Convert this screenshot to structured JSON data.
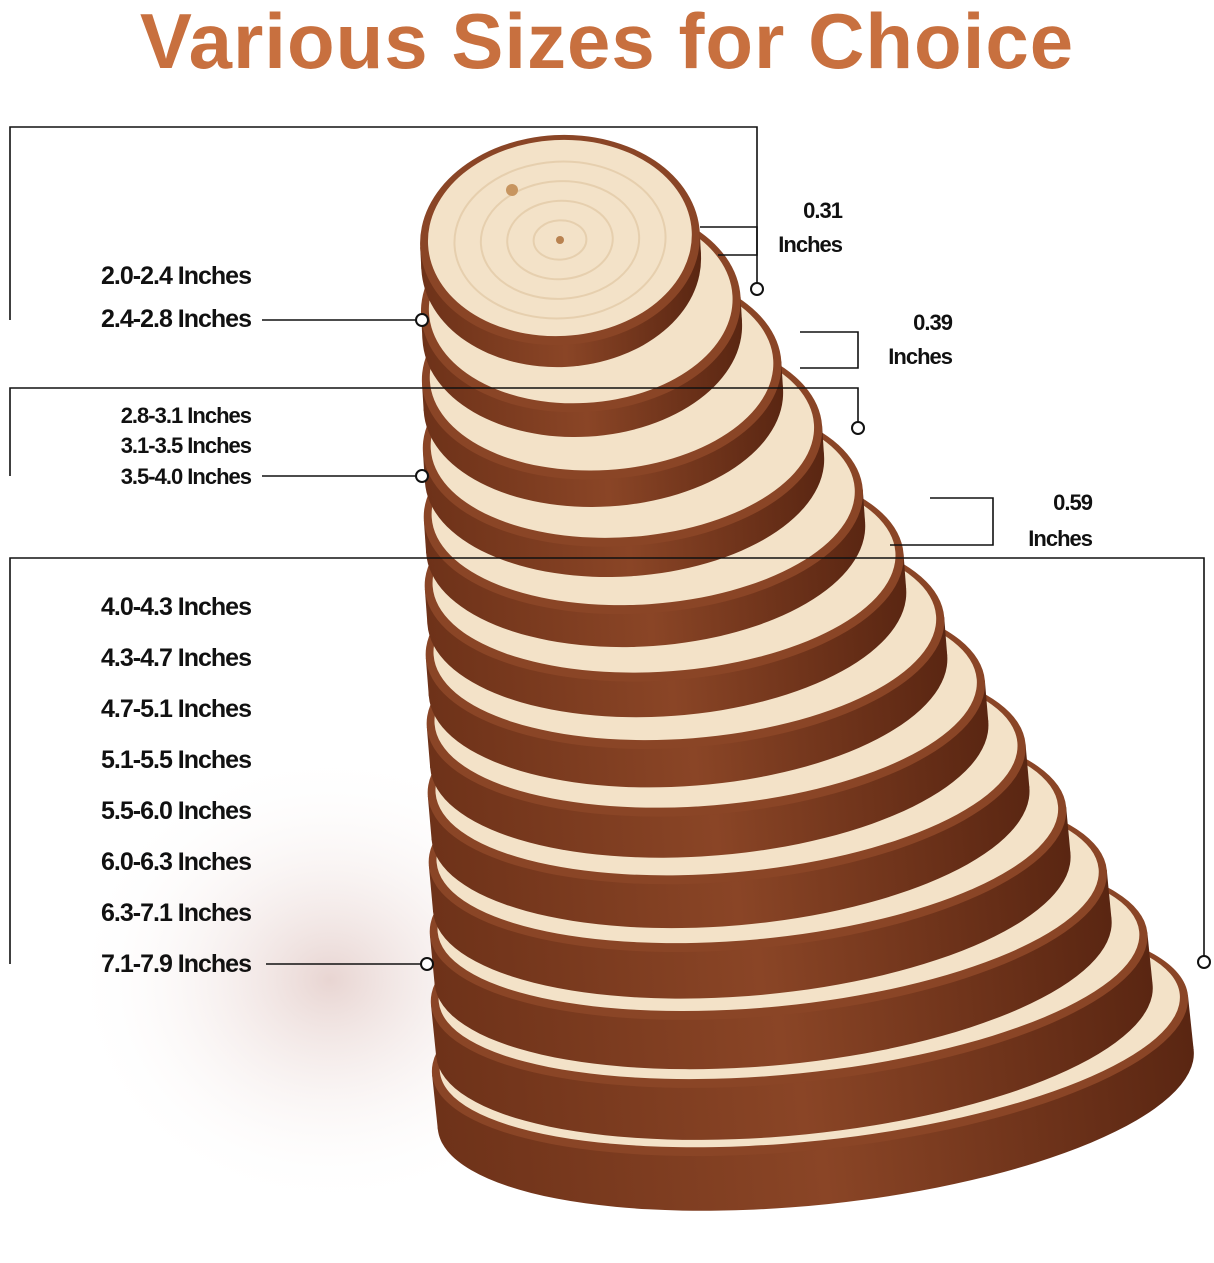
{
  "title": "Various Sizes for Choice",
  "colors": {
    "title": "#c8703f",
    "bark": "#8a4526",
    "wood": "#f3e2c8",
    "line": "#111111"
  },
  "size_groups": [
    {
      "labels": [
        "2.0-2.4 Inches",
        "2.4-2.8 Inches"
      ],
      "thickness": {
        "value": "0.31",
        "unit": "Inches"
      }
    },
    {
      "labels": [
        "2.8-3.1 Inches",
        "3.1-3.5 Inches",
        "3.5-4.0 Inches"
      ],
      "thickness": {
        "value": "0.39",
        "unit": "Inches"
      }
    },
    {
      "labels": [
        "4.0-4.3 Inches",
        "4.3-4.7 Inches",
        "4.7-5.1 Inches",
        "5.1-5.5 Inches",
        "5.5-6.0 Inches",
        "6.0-6.3 Inches",
        "6.3-7.1 Inches",
        "7.1-7.9 Inches"
      ],
      "thickness": {
        "value": "0.59",
        "unit": "Inches"
      }
    }
  ]
}
